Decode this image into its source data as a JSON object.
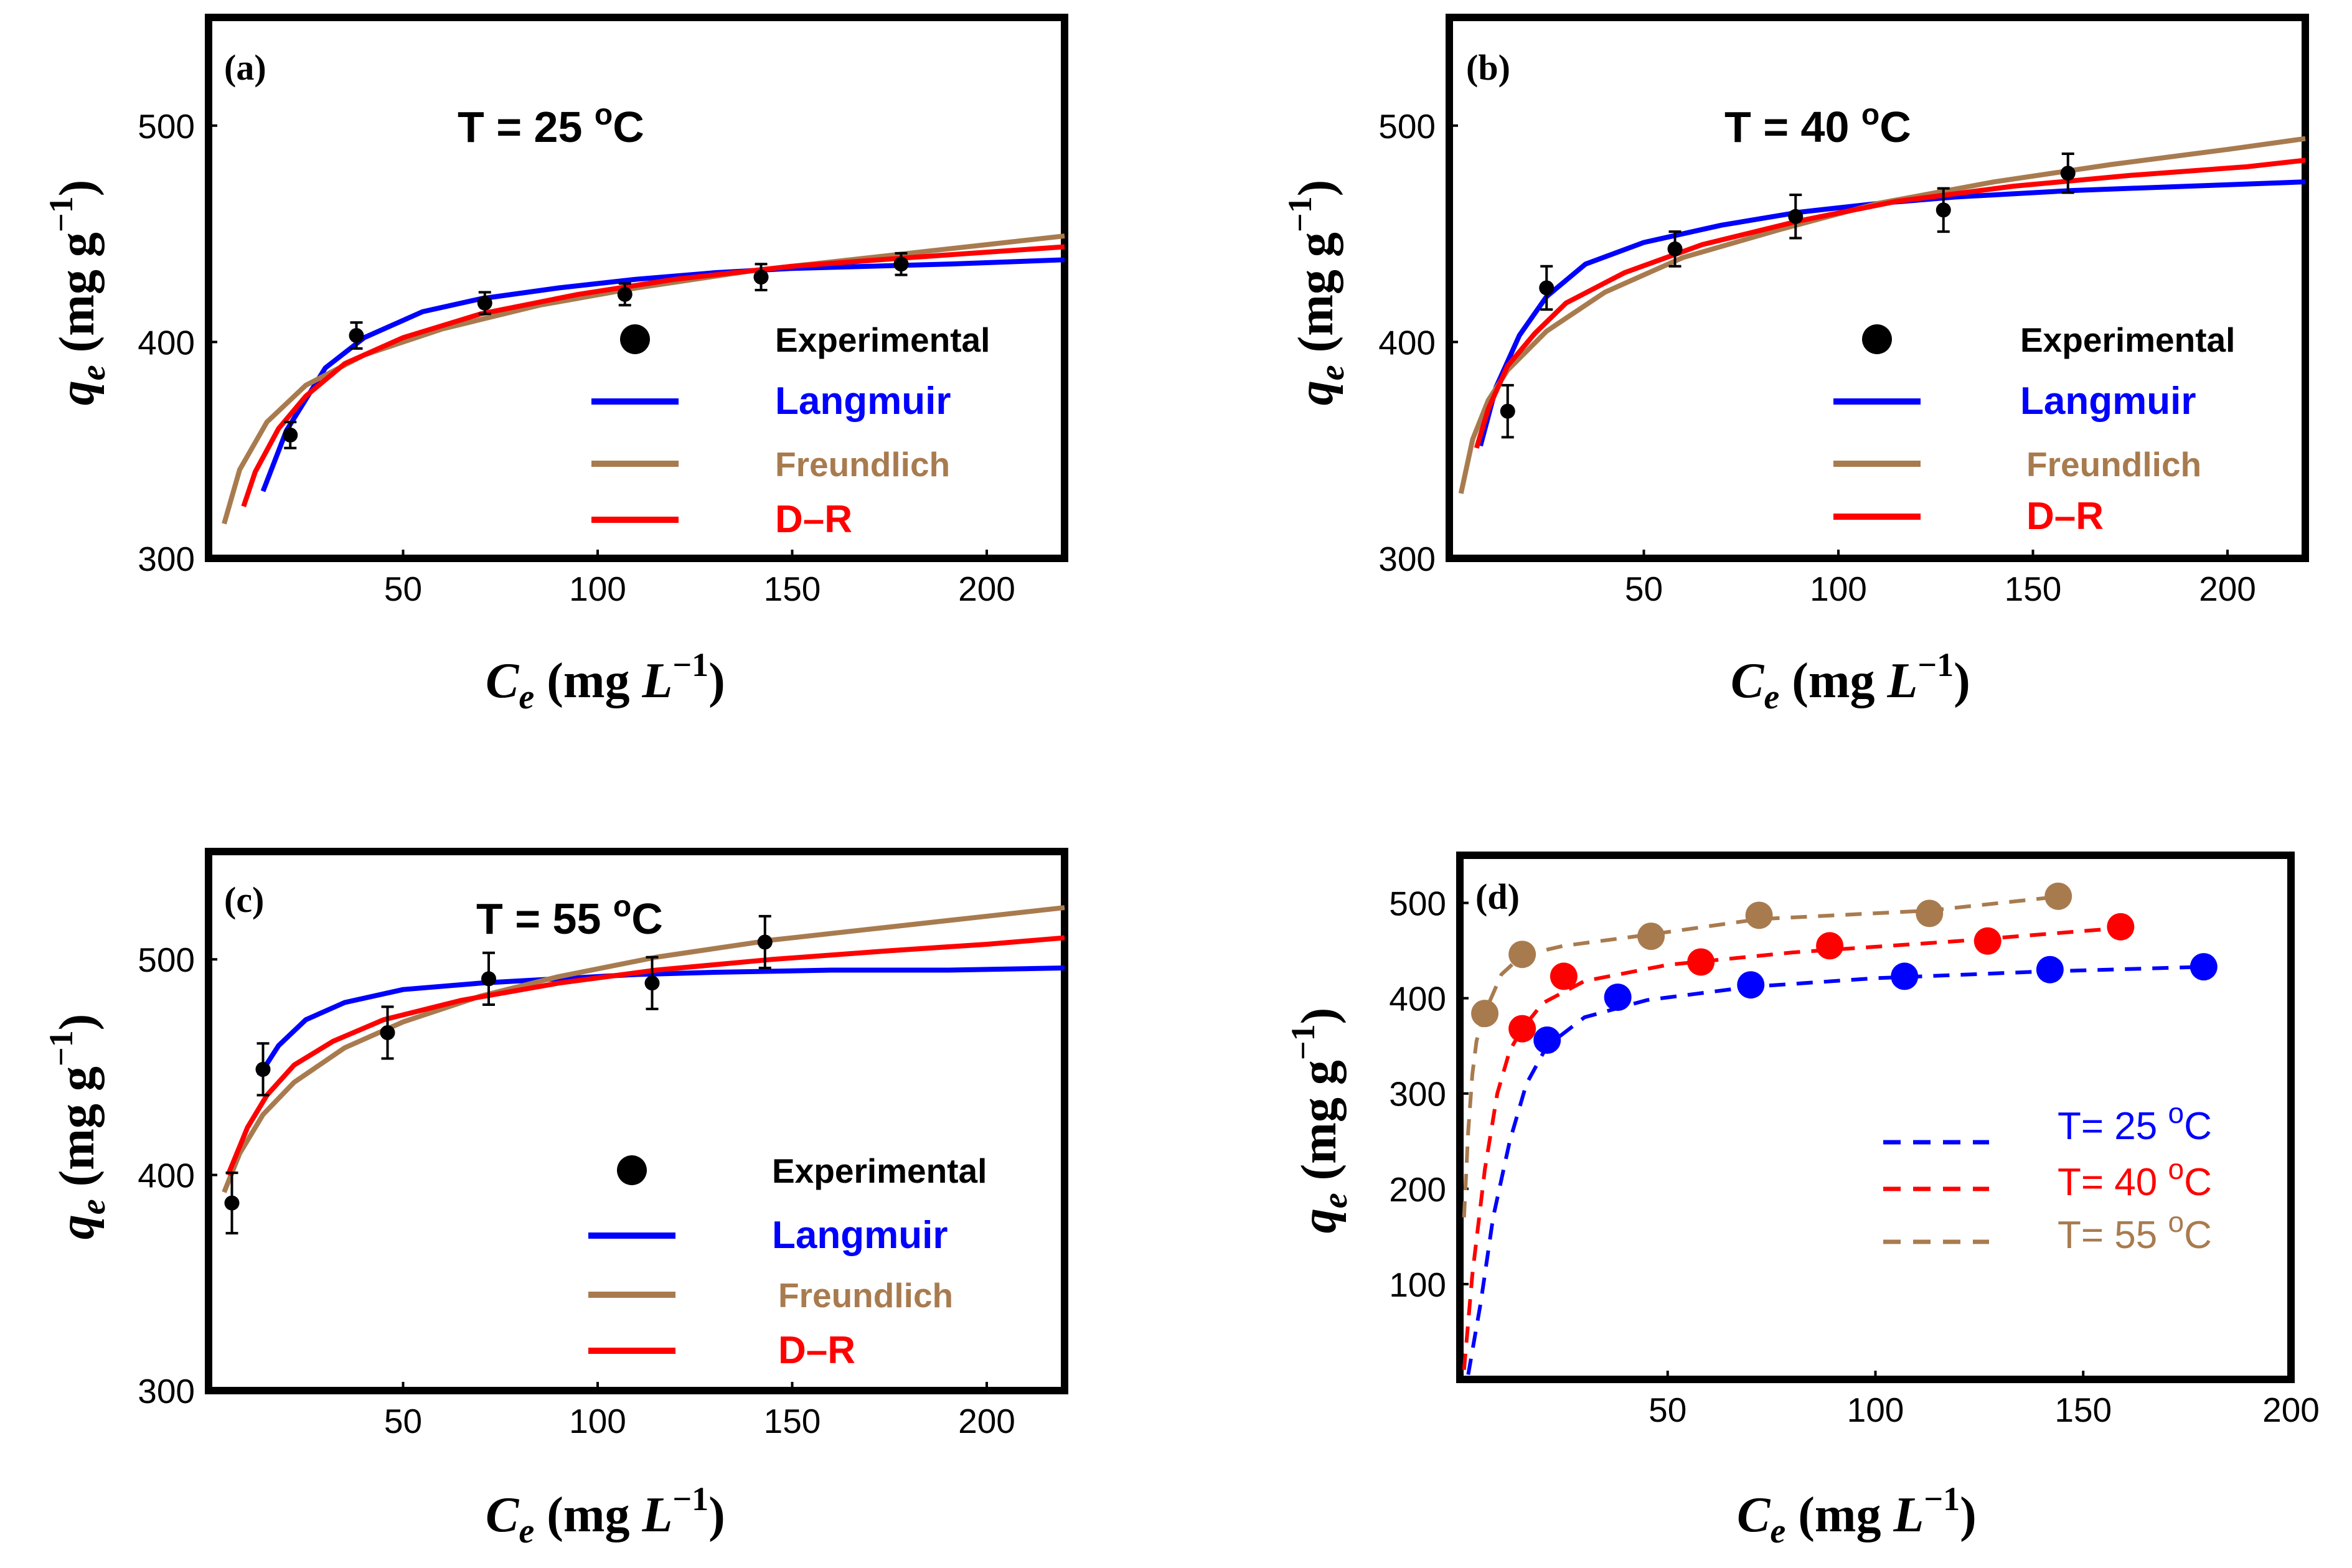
{
  "colors": {
    "experimental": "#000000",
    "langmuir": "#0000ff",
    "freundlich": "#a87b4f",
    "dr": "#ff0000",
    "series25": "#0000ff",
    "series40": "#ff0000",
    "series55": "#a87b4f"
  },
  "chart_data": [
    {
      "id": "a",
      "type": "scatter",
      "panel_label": "(a)",
      "title": "T = 25 °C",
      "xlabel": "Ce (mg L⁻¹)",
      "ylabel": "qe (mg g⁻¹)",
      "xlim": [
        0,
        220
      ],
      "ylim": [
        300,
        550
      ],
      "xticks": [
        50,
        100,
        150,
        200
      ],
      "yticks": [
        300,
        400,
        500
      ],
      "legend": [
        "Experimental",
        "Langmuir",
        "Freundlich",
        "D–R"
      ],
      "experimental": {
        "x": [
          21,
          38,
          71,
          107,
          142,
          178
        ],
        "y": [
          357,
          403,
          418,
          422,
          430,
          436
        ],
        "err": [
          6,
          6,
          5,
          5,
          6,
          5
        ]
      },
      "fits": [
        {
          "name": "Langmuir",
          "color_key": "langmuir",
          "x": [
            14,
            20,
            30,
            40,
            55,
            70,
            90,
            110,
            130,
            150,
            170,
            190,
            220
          ],
          "y": [
            331,
            359,
            388,
            402,
            414,
            420,
            425,
            429,
            432,
            434,
            435,
            436,
            438
          ]
        },
        {
          "name": "Freundlich",
          "color_key": "freundlich",
          "x": [
            4,
            8,
            15,
            25,
            40,
            60,
            85,
            110,
            140,
            170,
            200,
            220
          ],
          "y": [
            316,
            341,
            363,
            380,
            394,
            406,
            417,
            425,
            433,
            439,
            445,
            449
          ]
        },
        {
          "name": "D–R",
          "color_key": "dr",
          "x": [
            9,
            12,
            18,
            25,
            35,
            50,
            70,
            95,
            120,
            150,
            180,
            220
          ],
          "y": [
            324,
            340,
            360,
            375,
            390,
            402,
            413,
            422,
            429,
            435,
            439,
            444
          ]
        }
      ]
    },
    {
      "id": "b",
      "type": "scatter",
      "panel_label": "(b)",
      "title": "T = 40 °C",
      "xlabel": "Ce (mg L⁻¹)",
      "ylabel": "qe (mg g⁻¹)",
      "xlim": [
        0,
        220
      ],
      "ylim": [
        300,
        550
      ],
      "xticks": [
        50,
        100,
        150,
        200
      ],
      "yticks": [
        300,
        400,
        500
      ],
      "legend": [
        "Experimental",
        "Langmuir",
        "Freundlich",
        "D–R"
      ],
      "experimental": {
        "x": [
          15,
          25,
          58,
          89,
          127,
          159
        ],
        "y": [
          368,
          425,
          443,
          458,
          461,
          478
        ],
        "err": [
          12,
          10,
          8,
          10,
          10,
          9
        ]
      },
      "fits": [
        {
          "name": "Langmuir",
          "color_key": "langmuir",
          "x": [
            8,
            12,
            18,
            25,
            35,
            50,
            70,
            90,
            110,
            130,
            160,
            190,
            220
          ],
          "y": [
            352,
            379,
            403,
            421,
            436,
            446,
            454,
            460,
            464,
            467,
            470,
            472,
            474
          ]
        },
        {
          "name": "Freundlich",
          "color_key": "freundlich",
          "x": [
            3,
            6,
            10,
            15,
            25,
            40,
            60,
            85,
            110,
            140,
            170,
            200,
            220
          ],
          "y": [
            330,
            355,
            373,
            387,
            405,
            423,
            439,
            452,
            464,
            474,
            482,
            489,
            494
          ]
        },
        {
          "name": "D–R",
          "color_key": "dr",
          "x": [
            7,
            10,
            15,
            22,
            30,
            45,
            65,
            90,
            115,
            145,
            175,
            205,
            220
          ],
          "y": [
            351,
            369,
            389,
            404,
            418,
            432,
            445,
            456,
            465,
            472,
            477,
            481,
            484
          ]
        }
      ]
    },
    {
      "id": "c",
      "type": "scatter",
      "panel_label": "(c)",
      "title": "T = 55 °C",
      "xlabel": "Ce (mg L⁻¹)",
      "ylabel": "qe (mg g⁻¹)",
      "xlim": [
        0,
        220
      ],
      "ylim": [
        300,
        550
      ],
      "xticks": [
        50,
        100,
        150,
        200
      ],
      "yticks": [
        300,
        400,
        500
      ],
      "legend": [
        "Experimental",
        "Langmuir",
        "Freundlich",
        "D–R"
      ],
      "experimental": {
        "x": [
          6,
          14,
          46,
          72,
          114,
          143
        ],
        "y": [
          387,
          449,
          466,
          491,
          489,
          508
        ],
        "err": [
          14,
          12,
          12,
          12,
          12,
          12
        ]
      },
      "fits": [
        {
          "name": "Langmuir",
          "color_key": "langmuir",
          "x": [
            13,
            18,
            25,
            35,
            50,
            70,
            90,
            110,
            130,
            160,
            190,
            220
          ],
          "y": [
            446,
            460,
            472,
            480,
            486,
            489,
            491,
            493,
            494,
            495,
            495,
            496
          ]
        },
        {
          "name": "Freundlich",
          "color_key": "freundlich",
          "x": [
            4,
            8,
            14,
            22,
            35,
            50,
            70,
            90,
            115,
            145,
            175,
            200,
            220
          ],
          "y": [
            392,
            410,
            428,
            443,
            459,
            471,
            483,
            492,
            501,
            509,
            515,
            520,
            524
          ]
        },
        {
          "name": "D–R",
          "color_key": "dr",
          "x": [
            5,
            10,
            15,
            22,
            32,
            45,
            65,
            90,
            115,
            145,
            175,
            200,
            220
          ],
          "y": [
            400,
            422,
            437,
            451,
            462,
            472,
            481,
            489,
            495,
            500,
            504,
            507,
            510
          ]
        }
      ]
    },
    {
      "id": "d",
      "type": "scatter",
      "panel_label": "(d)",
      "xlabel": "Ce (mg L⁻¹)",
      "ylabel": "qe (mg g⁻¹)",
      "xlim": [
        0,
        200
      ],
      "ylim": [
        0,
        550
      ],
      "xticks": [
        50,
        100,
        150,
        200
      ],
      "yticks": [
        100,
        200,
        300,
        400,
        500
      ],
      "legend": [
        "T= 25 °C",
        "T= 40 °C",
        "T= 55 °C"
      ],
      "series": [
        {
          "name": "T= 25 °C",
          "color_key": "series25",
          "points": {
            "x": [
              21,
              38,
              70,
              107,
              142,
              179
            ],
            "y": [
              356,
              401,
              414,
              423,
              430,
              433
            ]
          },
          "fit": {
            "x": [
              2,
              5,
              8,
              12,
              16,
              21,
              30,
              45,
              70,
              100,
              140,
              180
            ],
            "y": [
              5,
              80,
              170,
              250,
              310,
              350,
              380,
              398,
              412,
              421,
              428,
              433
            ]
          }
        },
        {
          "name": "T= 40 °C",
          "color_key": "series40",
          "points": {
            "x": [
              15,
              25,
              58,
              89,
              127,
              159
            ],
            "y": [
              368,
              423,
              438,
              455,
              460,
              475
            ]
          },
          "fit": {
            "x": [
              1,
              3,
              6,
              9,
              12,
              15,
              20,
              30,
              50,
              80,
              120,
              160
            ],
            "y": [
              10,
              110,
              220,
              300,
              345,
              368,
              395,
              418,
              435,
              448,
              460,
              474
            ]
          }
        },
        {
          "name": "T= 55 °C",
          "color_key": "series55",
          "points": {
            "x": [
              6,
              15,
              46,
              72,
              113,
              144
            ],
            "y": [
              384,
              446,
              465,
              487,
              489,
              507
            ]
          },
          "fit": {
            "x": [
              1,
              2,
              3,
              4,
              6,
              10,
              15,
              25,
              46,
              72,
              113,
              145
            ],
            "y": [
              170,
              260,
              320,
              355,
              385,
              425,
              445,
              455,
              467,
              483,
              492,
              507
            ]
          }
        }
      ]
    }
  ],
  "strings": {
    "xlabel_main": "C",
    "xlabel_sub": "e",
    "xlabel_unit": " (mg ",
    "xlabel_L": "L",
    "xlabel_exp": "−1",
    "xlabel_close": ")",
    "ylabel_main": "q",
    "ylabel_sub": "e",
    "ylabel_unit": " (mg g",
    "ylabel_exp": "−1",
    "ylabel_close": ")",
    "title_prefix": "T = ",
    "title_unit": "C",
    "degree_mark": "o"
  }
}
